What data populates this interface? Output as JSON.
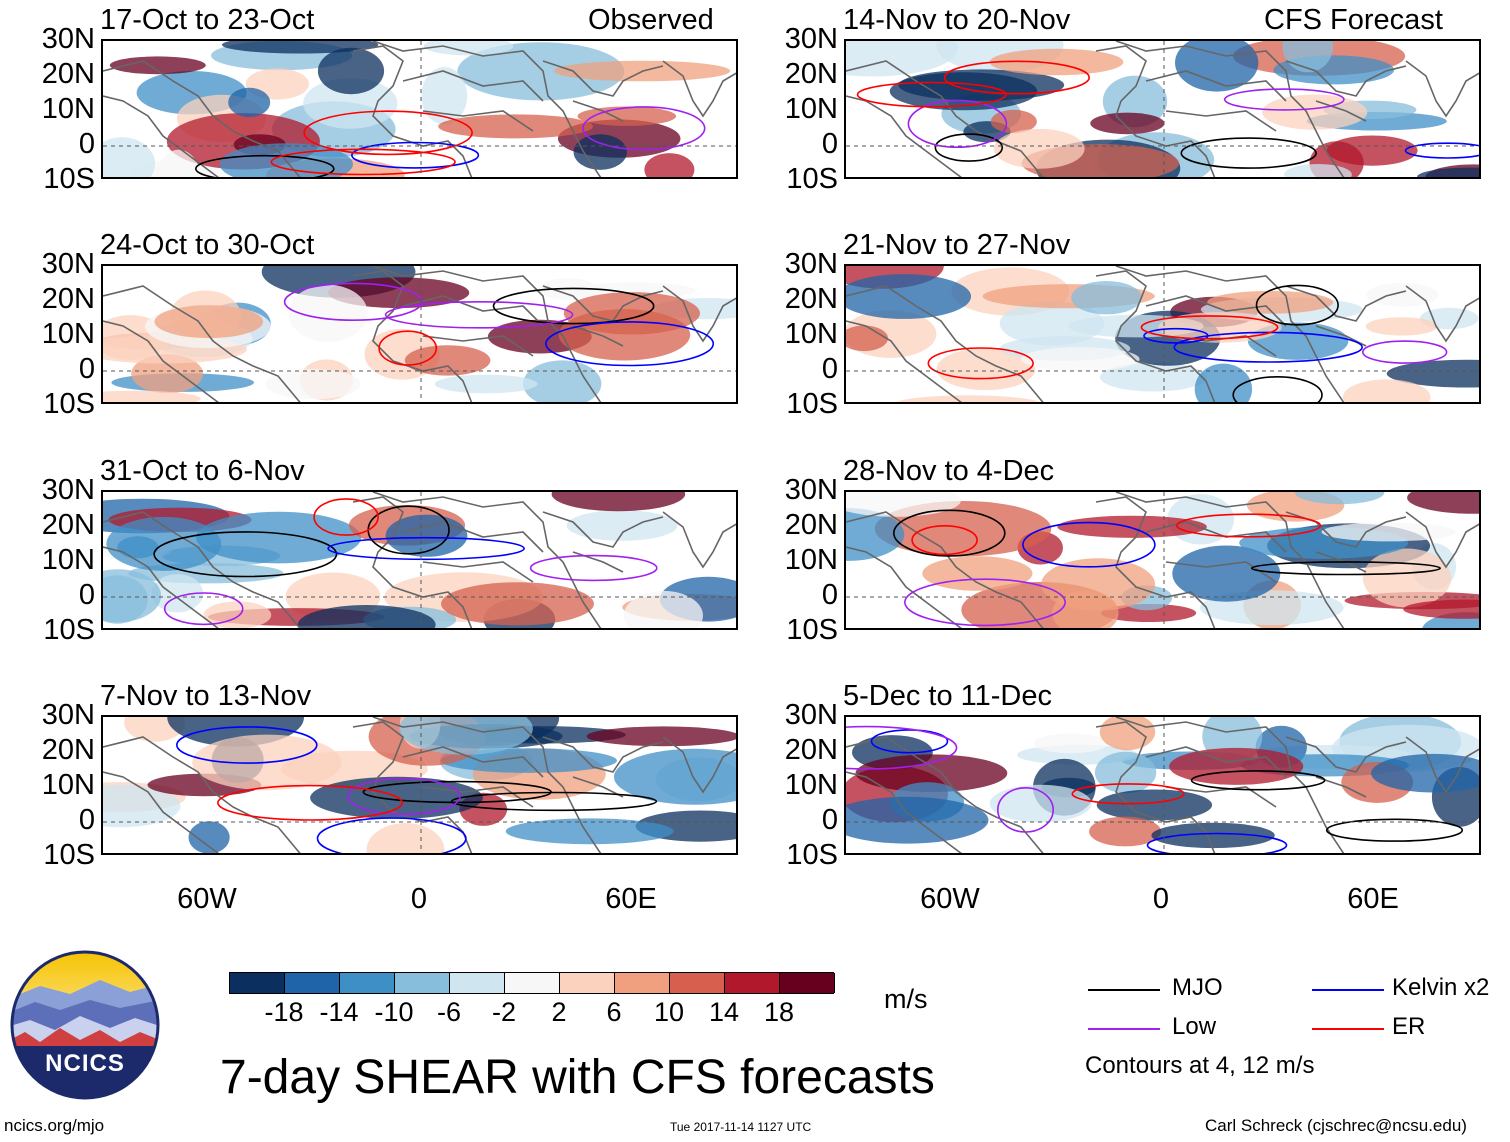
{
  "header": {
    "left_label": "Observed",
    "right_label": "CFS Forecast"
  },
  "panels": [
    {
      "period": "17-Oct to 23-Oct"
    },
    {
      "period": "24-Oct to 30-Oct"
    },
    {
      "period": "31-Oct to 6-Nov"
    },
    {
      "period": "7-Nov to 13-Nov"
    },
    {
      "period": "14-Nov to 20-Nov"
    },
    {
      "period": "21-Nov to 27-Nov"
    },
    {
      "period": "28-Nov to 4-Dec"
    },
    {
      "period": "5-Dec to 11-Dec"
    }
  ],
  "axes": {
    "lat_labels": [
      "30N",
      "20N",
      "10N",
      "0",
      "10S"
    ],
    "lon_labels": [
      "60W",
      "0",
      "60E"
    ]
  },
  "colorbar": {
    "labels": [
      "-18",
      "-14",
      "-10",
      "-6",
      "-2",
      "2",
      "6",
      "10",
      "14",
      "18"
    ],
    "colors": [
      "#0b2f5e",
      "#1f64a8",
      "#3f8fc7",
      "#87bedc",
      "#cfe5f0",
      "#f7f7f7",
      "#fbd2bd",
      "#f0a07e",
      "#d6604d",
      "#b2182b",
      "#67001f"
    ],
    "units": "m/s"
  },
  "legend": {
    "items": [
      {
        "label": "MJO",
        "color": "#000000"
      },
      {
        "label": "Kelvin x2",
        "color": "#0000ff"
      },
      {
        "label": "Low",
        "color": "#a020f0"
      },
      {
        "label": "ER",
        "color": "#ff0000"
      }
    ],
    "note": "Contours at 4, 12 m/s"
  },
  "logo": {
    "text": "NCICS"
  },
  "title": "7-day SHEAR with CFS forecasts",
  "footer": {
    "url": "ncics.org/mjo",
    "timestamp": "Tue 2017-11-14 1127 UTC",
    "author": "Carl Schreck (cjschrec@ncsu.edu)"
  }
}
